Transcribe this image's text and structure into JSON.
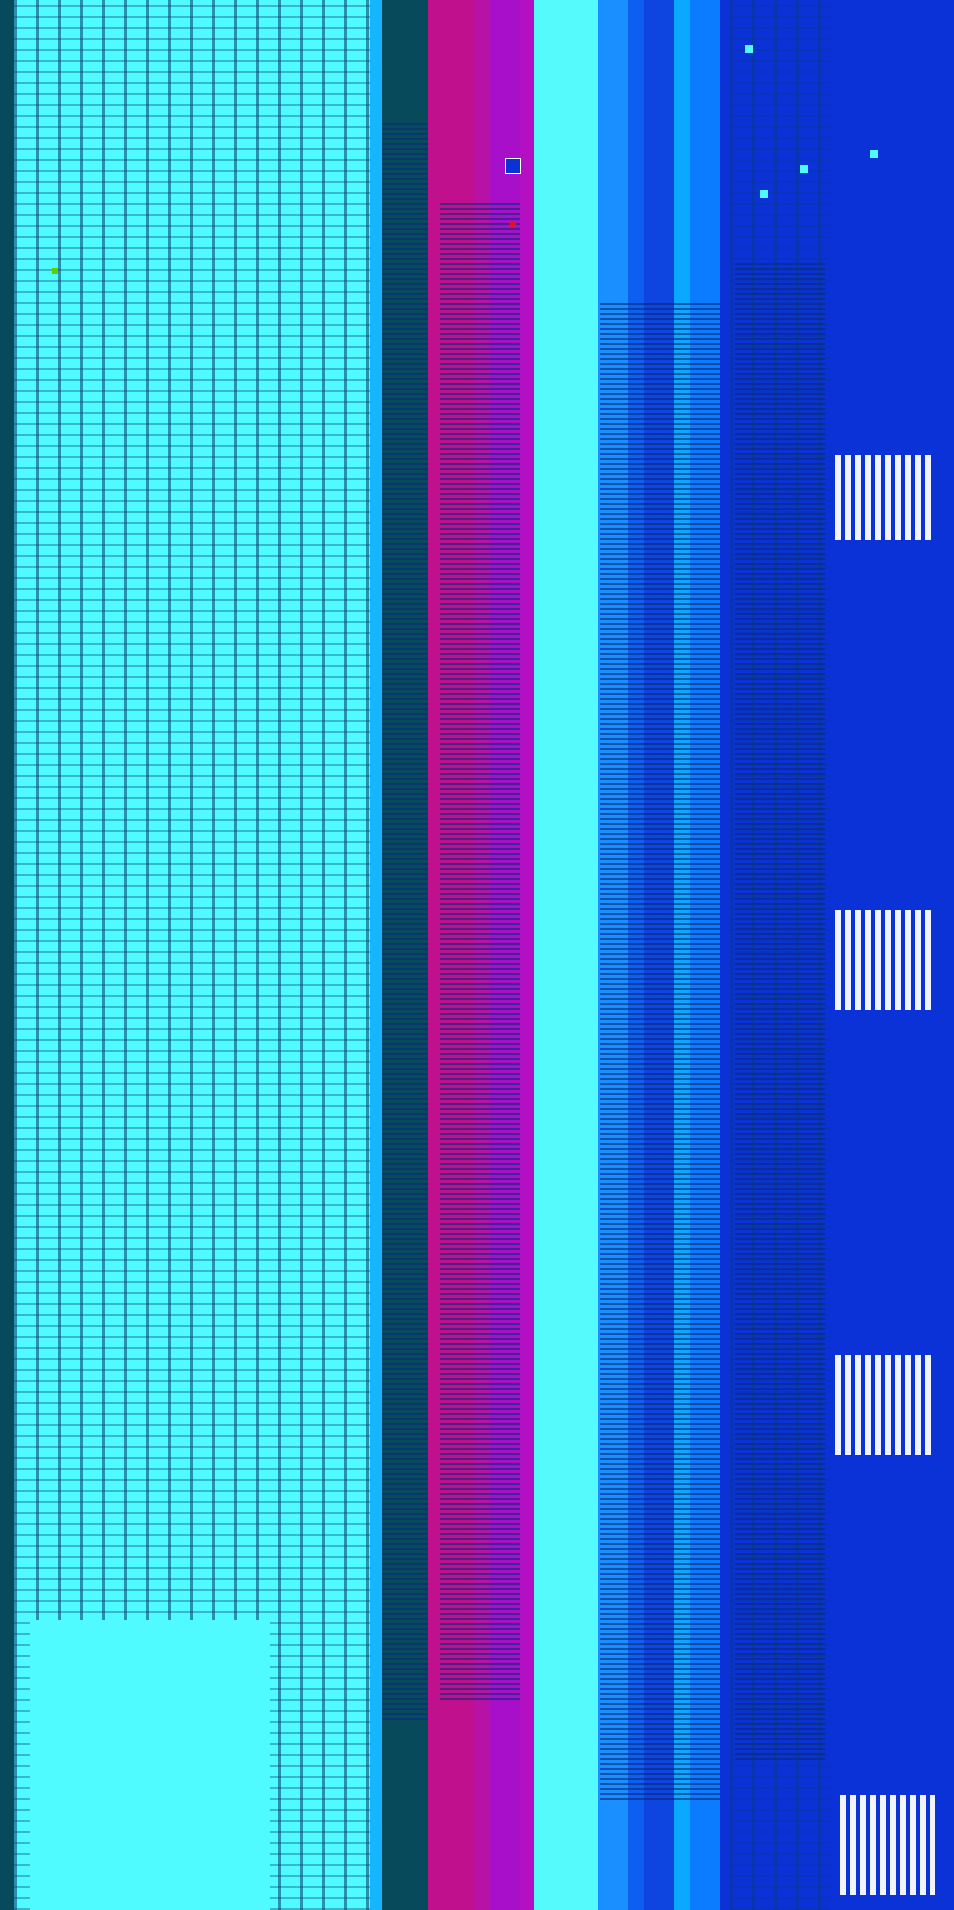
{
  "colors": {
    "cyan_light": "#4ffbff",
    "teal_dark": "#064a5c",
    "magenta": "#c0108e",
    "purple": "#a80fc8",
    "pale_cyan": "#55fbfc",
    "blue_mid": "#1a8fff",
    "blue_deep": "#0b32d6",
    "sky": "#16b6ff"
  },
  "bands": [
    {
      "name": "band-left-cyan",
      "color": "#4ffbff"
    },
    {
      "name": "band-teal",
      "color": "#064a5c"
    },
    {
      "name": "band-magenta",
      "color": "#c0108e"
    },
    {
      "name": "band-purple",
      "color": "#a80fc8"
    },
    {
      "name": "band-pale-cyan",
      "color": "#55fbfc"
    },
    {
      "name": "band-blue-stripes",
      "color": "#1a8fff"
    },
    {
      "name": "band-deep-blue",
      "color": "#0b32d6"
    }
  ]
}
